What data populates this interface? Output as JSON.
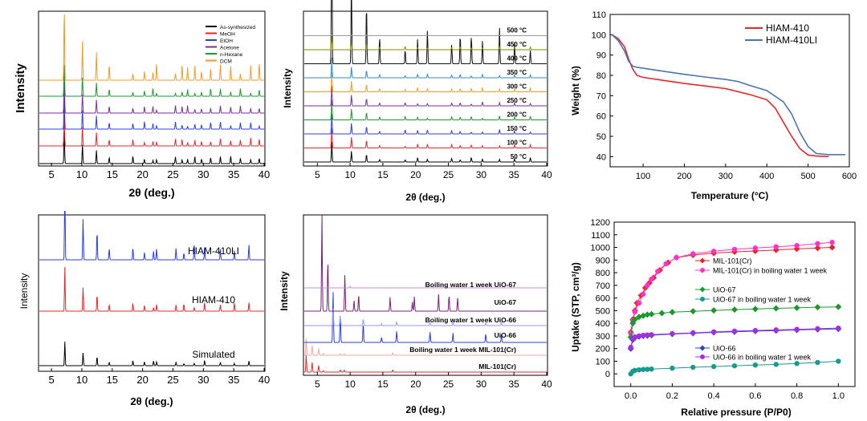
{
  "figure_caption": "",
  "chart_data": [
    {
      "id": "a",
      "type": "line",
      "title": "",
      "xlabel": "2θ (deg.)",
      "ylabel": "Intensity",
      "xlim": [
        3,
        40
      ],
      "xticks": [
        5,
        10,
        15,
        20,
        25,
        30,
        35,
        40
      ],
      "legend_position": "top-right",
      "series": [
        {
          "name": "As-synthesized",
          "color": "#000000"
        },
        {
          "name": "MeOH",
          "color": "#e8262a"
        },
        {
          "name": "EtOH",
          "color": "#2b3fe0"
        },
        {
          "name": "Acetone",
          "color": "#7b2d9e"
        },
        {
          "name": "n-Hexane",
          "color": "#1a9a2c"
        },
        {
          "name": "DCM",
          "color": "#f59a23"
        }
      ],
      "peak_positions": [
        7.1,
        10.1,
        12.4,
        14.5,
        18.4,
        20.3,
        21.7,
        22.3,
        25.4,
        26.5,
        27.4,
        28.6,
        29.7,
        31.2,
        32.8,
        34.5,
        36.1,
        37.8,
        39.2
      ]
    },
    {
      "id": "b",
      "type": "line",
      "xlabel": "2θ (deg.)",
      "ylabel": "Intensity",
      "xlim": [
        3,
        40
      ],
      "xticks": [
        5,
        10,
        15,
        20,
        25,
        30,
        35,
        40
      ],
      "series": [
        {
          "name": "50 °C",
          "color": "#000000"
        },
        {
          "name": "100 °C",
          "color": "#e8262a"
        },
        {
          "name": "150 °C",
          "color": "#2b3fe0"
        },
        {
          "name": "200 °C",
          "color": "#1a9a2c"
        },
        {
          "name": "250 °C",
          "color": "#7b2d9e"
        },
        {
          "name": "300 °C",
          "color": "#f59a23"
        },
        {
          "name": "350 °C",
          "color": "#2e8bd0"
        },
        {
          "name": "400 °C",
          "color": "#111111"
        },
        {
          "name": "450 °C",
          "color": "#8a8a00"
        },
        {
          "name": "500 °C",
          "color": "#999999"
        }
      ],
      "peak_positions": [
        7.2,
        10.2,
        12.5,
        14.5,
        18.4,
        20.3,
        21.8,
        25.5,
        26.8,
        28.5,
        30.2,
        32.8,
        35.1,
        37.5
      ]
    },
    {
      "id": "c",
      "type": "line",
      "xlabel": "Temperature (°C)",
      "ylabel": "Weight (%)",
      "xlim": [
        20,
        600
      ],
      "ylim": [
        35,
        110
      ],
      "xticks": [
        100,
        200,
        300,
        400,
        500,
        600
      ],
      "yticks": [
        40,
        50,
        60,
        70,
        80,
        90,
        100,
        110
      ],
      "legend_position": "top-right",
      "series": [
        {
          "name": "HIAM-410",
          "color": "#e8262a",
          "x": [
            25,
            40,
            55,
            65,
            75,
            85,
            100,
            150,
            200,
            250,
            300,
            330,
            360,
            400,
            420,
            440,
            460,
            480,
            500,
            520,
            550
          ],
          "y": [
            100,
            98,
            94,
            88,
            83,
            80,
            79,
            77.5,
            76,
            74.8,
            73.5,
            72,
            70.5,
            68,
            64,
            57,
            50,
            44,
            40.8,
            40.3,
            40
          ]
        },
        {
          "name": "HIAM-410LI",
          "color": "#4a74b4",
          "x": [
            25,
            40,
            55,
            65,
            75,
            85,
            100,
            150,
            200,
            250,
            300,
            330,
            360,
            400,
            440,
            460,
            480,
            500,
            520,
            550,
            590
          ],
          "y": [
            100,
            97,
            92,
            87,
            84.5,
            84,
            83.5,
            82,
            80.5,
            79.2,
            78,
            77,
            75,
            72.5,
            67,
            61,
            52,
            45,
            41.5,
            41,
            41
          ]
        }
      ]
    },
    {
      "id": "d",
      "type": "line",
      "xlabel": "2θ (deg.)",
      "ylabel": "Intensity",
      "xlim": [
        3,
        40
      ],
      "xticks": [
        5,
        10,
        15,
        20,
        25,
        30,
        35,
        40
      ],
      "series": [
        {
          "name": "Simulated",
          "color": "#000000"
        },
        {
          "name": "HIAM-410",
          "color": "#e8262a"
        },
        {
          "name": "HIAM-410LI",
          "color": "#2b3fe0"
        }
      ],
      "peak_positions": [
        7.2,
        10.2,
        12.5,
        14.5,
        18.4,
        20.3,
        21.8,
        22.3,
        25.5,
        26.8,
        28.5,
        30.2,
        32.8,
        35.1,
        37.5
      ]
    },
    {
      "id": "e",
      "type": "line",
      "xlabel": "2θ (deg.)",
      "ylabel": "Intensity",
      "xlim": [
        3,
        40
      ],
      "xticks": [
        5,
        10,
        15,
        20,
        25,
        30,
        35,
        40
      ],
      "series": [
        {
          "name": "MIL-101(Cr)",
          "color": "#e8262a",
          "peaks": [
            3.3,
            4.2,
            5.2,
            5.9,
            8.5,
            9.1,
            16.5
          ]
        },
        {
          "name": "Boiling water 1 week MIL-101(Cr)",
          "color": "#f4a4a4",
          "peaks": [
            3.3,
            4.2,
            5.2,
            5.9,
            8.5,
            9.1,
            16.5
          ]
        },
        {
          "name": "UiO-66",
          "color": "#2b3fe0",
          "peaks": [
            7.4,
            8.5,
            12.0,
            14.8,
            17.1,
            22.2,
            25.7,
            30.7,
            33.1
          ]
        },
        {
          "name": "Boiling water 1 week UiO-66",
          "color": "#8f9bf0",
          "peaks": [
            7.4,
            8.5,
            12.0,
            14.8,
            17.1,
            22.2,
            25.7,
            30.7,
            33.1
          ]
        },
        {
          "name": "UiO-67",
          "color": "#7a1f7a",
          "peaks": [
            5.7,
            6.6,
            9.2,
            10.6,
            11.3,
            16.1,
            19.5,
            19.8,
            23.5,
            25.1,
            26.4
          ]
        },
        {
          "name": "Boiling water 1 week UiO-67",
          "color": "#c98fd0",
          "peaks": []
        }
      ]
    },
    {
      "id": "f",
      "type": "scatter",
      "xlabel": "Relative pressure (P/P0)",
      "ylabel": "Uptake (STP, cm³/g)",
      "xlim": [
        -0.08,
        1.08
      ],
      "ylim": [
        -100,
        1200
      ],
      "xticks": [
        0.0,
        0.2,
        0.4,
        0.6,
        0.8,
        1.0
      ],
      "yticks": [
        0,
        100,
        200,
        300,
        400,
        500,
        600,
        700,
        800,
        900,
        1000,
        1100,
        1200
      ],
      "series": [
        {
          "name": "MIL-101(Cr)",
          "color": "#e8262a",
          "marker": "diamond",
          "x": [
            0.0,
            0.01,
            0.02,
            0.03,
            0.05,
            0.07,
            0.09,
            0.11,
            0.14,
            0.18,
            0.22,
            0.3,
            0.4,
            0.5,
            0.6,
            0.7,
            0.8,
            0.9,
            0.97
          ],
          "y": [
            330,
            430,
            500,
            560,
            620,
            680,
            720,
            760,
            820,
            880,
            920,
            940,
            955,
            965,
            972,
            980,
            988,
            995,
            1000
          ]
        },
        {
          "name": "MIL-101(Cr) in boiling water 1 week",
          "color": "#ff33cc",
          "marker": "circle",
          "x": [
            0.0,
            0.01,
            0.02,
            0.04,
            0.06,
            0.08,
            0.1,
            0.13,
            0.17,
            0.22,
            0.3,
            0.4,
            0.5,
            0.6,
            0.7,
            0.8,
            0.9,
            0.97
          ],
          "y": [
            320,
            420,
            490,
            560,
            630,
            700,
            750,
            810,
            870,
            920,
            950,
            970,
            985,
            995,
            1005,
            1015,
            1030,
            1040
          ]
        },
        {
          "name": "UiO-67",
          "color": "#1a9a2c",
          "marker": "diamond",
          "x": [
            0.0,
            0.01,
            0.02,
            0.04,
            0.06,
            0.08,
            0.1,
            0.15,
            0.2,
            0.3,
            0.4,
            0.5,
            0.6,
            0.7,
            0.8,
            0.9,
            1.0
          ],
          "y": [
            290,
            400,
            430,
            450,
            460,
            468,
            472,
            480,
            488,
            495,
            502,
            508,
            513,
            518,
            522,
            527,
            530
          ]
        },
        {
          "name": "UiO-67 in boiling water 1 week",
          "color": "#1a9a8c",
          "marker": "circle",
          "x": [
            0.0,
            0.01,
            0.02,
            0.04,
            0.06,
            0.08,
            0.1,
            0.2,
            0.3,
            0.4,
            0.5,
            0.6,
            0.7,
            0.8,
            0.9,
            1.0
          ],
          "y": [
            0,
            20,
            28,
            32,
            35,
            36,
            38,
            45,
            52,
            58,
            64,
            70,
            75,
            82,
            90,
            100
          ]
        },
        {
          "name": "UiO-66",
          "color": "#2b3fe0",
          "marker": "diamond",
          "x": [
            0.0,
            0.01,
            0.02,
            0.04,
            0.06,
            0.08,
            0.1,
            0.2,
            0.3,
            0.4,
            0.5,
            0.6,
            0.7,
            0.8,
            0.9,
            1.0
          ],
          "y": [
            200,
            270,
            285,
            295,
            300,
            303,
            306,
            315,
            322,
            328,
            333,
            338,
            342,
            347,
            352,
            356
          ]
        },
        {
          "name": "UiO-66 in boiling water 1 week",
          "color": "#a32fe0",
          "marker": "circle",
          "x": [
            0.0,
            0.01,
            0.02,
            0.04,
            0.06,
            0.08,
            0.1,
            0.2,
            0.3,
            0.4,
            0.5,
            0.6,
            0.7,
            0.8,
            0.9,
            1.0
          ],
          "y": [
            210,
            280,
            292,
            300,
            305,
            308,
            310,
            318,
            325,
            332,
            338,
            343,
            348,
            352,
            357,
            362
          ]
        }
      ]
    }
  ]
}
